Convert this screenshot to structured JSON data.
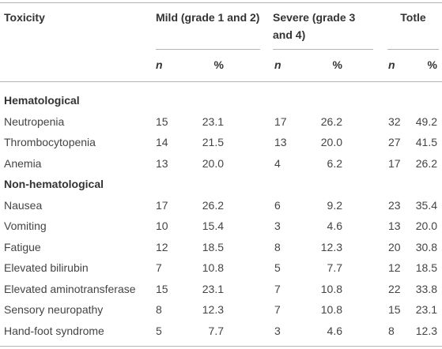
{
  "table": {
    "header": {
      "toxicity": "Toxicity",
      "groups": [
        "Mild (grade 1 and 2)",
        "Severe (grade 3 and 4)",
        "Totle"
      ],
      "subheaders": [
        "n",
        "%",
        "n",
        "%",
        "n",
        "%"
      ]
    },
    "sections": [
      {
        "title": "Hematological",
        "rows": [
          [
            "Neutropenia",
            "15",
            "23.1",
            "17",
            "26.2",
            "32",
            "49.2"
          ],
          [
            "Thrombocytopenia",
            "14",
            "21.5",
            "13",
            "20.0",
            "27",
            "41.5"
          ],
          [
            "Anemia",
            "13",
            "20.0",
            "4",
            "6.2",
            "17",
            "26.2"
          ]
        ]
      },
      {
        "title": "Non-hematological",
        "rows": [
          [
            "Nausea",
            "17",
            "26.2",
            "6",
            "9.2",
            "23",
            "35.4"
          ],
          [
            "Vomiting",
            "10",
            "15.4",
            "3",
            "4.6",
            "13",
            "20.0"
          ],
          [
            "Fatigue",
            "12",
            "18.5",
            "8",
            "12.3",
            "20",
            "30.8"
          ],
          [
            "Elevated bilirubin",
            "7",
            "10.8",
            "5",
            "7.7",
            "12",
            "18.5"
          ],
          [
            "Elevated aminotransferase",
            "15",
            "23.1",
            "7",
            "10.8",
            "22",
            "33.8"
          ],
          [
            "Sensory neuropathy",
            "8",
            "12.3",
            "7",
            "10.8",
            "15",
            "23.1"
          ],
          [
            "Hand-foot syndrome",
            "5",
            "7.7",
            "3",
            "4.6",
            "8",
            "12.3"
          ]
        ]
      }
    ]
  }
}
